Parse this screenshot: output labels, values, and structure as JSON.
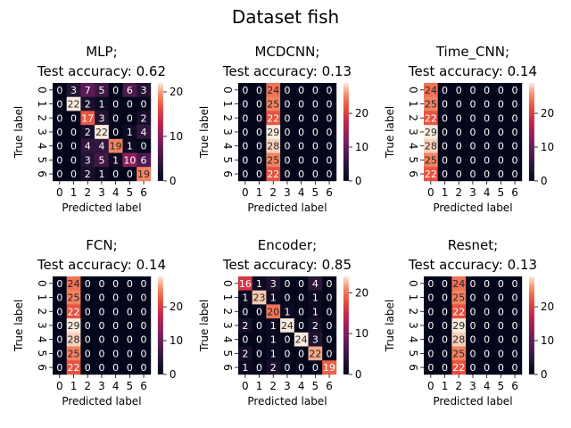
{
  "figure_title": "Dataset fish",
  "chart_data": [
    {
      "type": "heatmap",
      "title_line1": "MLP;",
      "title_line2": "Test accuracy: 0.62",
      "xlabel": "Predicted label",
      "ylabel": "True label",
      "x_ticks": [
        "0",
        "1",
        "2",
        "3",
        "4",
        "5",
        "6"
      ],
      "y_ticks": [
        "0",
        "1",
        "2",
        "3",
        "4",
        "5",
        "6"
      ],
      "vmax": 22,
      "colorbar_ticks": [
        0,
        10,
        20
      ],
      "matrix": [
        [
          0,
          3,
          7,
          5,
          0,
          6,
          3
        ],
        [
          0,
          22,
          2,
          1,
          0,
          0,
          0
        ],
        [
          0,
          0,
          17,
          3,
          0,
          0,
          2
        ],
        [
          0,
          0,
          2,
          22,
          0,
          1,
          4
        ],
        [
          0,
          0,
          4,
          4,
          19,
          1,
          0
        ],
        [
          0,
          0,
          3,
          5,
          1,
          10,
          6
        ],
        [
          0,
          0,
          2,
          1,
          0,
          0,
          19
        ]
      ]
    },
    {
      "type": "heatmap",
      "title_line1": "MCDCNN;",
      "title_line2": "Test accuracy: 0.13",
      "xlabel": "Predicted label",
      "ylabel": "True label",
      "x_ticks": [
        "0",
        "1",
        "2",
        "3",
        "4",
        "5",
        "6"
      ],
      "y_ticks": [
        "0",
        "1",
        "2",
        "3",
        "4",
        "5",
        "6"
      ],
      "vmax": 29,
      "colorbar_ticks": [
        0,
        10,
        20
      ],
      "matrix": [
        [
          0,
          0,
          24,
          0,
          0,
          0,
          0
        ],
        [
          0,
          0,
          25,
          0,
          0,
          0,
          0
        ],
        [
          0,
          0,
          22,
          0,
          0,
          0,
          0
        ],
        [
          0,
          0,
          29,
          0,
          0,
          0,
          0
        ],
        [
          0,
          0,
          28,
          0,
          0,
          0,
          0
        ],
        [
          0,
          0,
          25,
          0,
          0,
          0,
          0
        ],
        [
          0,
          0,
          22,
          0,
          0,
          0,
          0
        ]
      ]
    },
    {
      "type": "heatmap",
      "title_line1": "Time_CNN;",
      "title_line2": "Test accuracy: 0.14",
      "xlabel": "Predicted label",
      "ylabel": "True label",
      "x_ticks": [
        "0",
        "1",
        "2",
        "3",
        "4",
        "5",
        "6"
      ],
      "y_ticks": [
        "0",
        "1",
        "2",
        "3",
        "4",
        "5",
        "6"
      ],
      "vmax": 29,
      "colorbar_ticks": [
        0,
        10,
        20
      ],
      "matrix": [
        [
          24,
          0,
          0,
          0,
          0,
          0,
          0
        ],
        [
          25,
          0,
          0,
          0,
          0,
          0,
          0
        ],
        [
          22,
          0,
          0,
          0,
          0,
          0,
          0
        ],
        [
          29,
          0,
          0,
          0,
          0,
          0,
          0
        ],
        [
          28,
          0,
          0,
          0,
          0,
          0,
          0
        ],
        [
          25,
          0,
          0,
          0,
          0,
          0,
          0
        ],
        [
          22,
          0,
          0,
          0,
          0,
          0,
          0
        ]
      ]
    },
    {
      "type": "heatmap",
      "title_line1": "FCN;",
      "title_line2": "Test accuracy: 0.14",
      "xlabel": "Predicted label",
      "ylabel": "True label",
      "x_ticks": [
        "0",
        "1",
        "2",
        "3",
        "4",
        "5",
        "6"
      ],
      "y_ticks": [
        "0",
        "1",
        "2",
        "3",
        "4",
        "5",
        "6"
      ],
      "vmax": 29,
      "colorbar_ticks": [
        0,
        10,
        20
      ],
      "matrix": [
        [
          0,
          24,
          0,
          0,
          0,
          0,
          0
        ],
        [
          0,
          25,
          0,
          0,
          0,
          0,
          0
        ],
        [
          0,
          22,
          0,
          0,
          0,
          0,
          0
        ],
        [
          0,
          29,
          0,
          0,
          0,
          0,
          0
        ],
        [
          0,
          28,
          0,
          0,
          0,
          0,
          0
        ],
        [
          0,
          25,
          0,
          0,
          0,
          0,
          0
        ],
        [
          0,
          22,
          0,
          0,
          0,
          0,
          0
        ]
      ]
    },
    {
      "type": "heatmap",
      "title_line1": "Encoder;",
      "title_line2": "Test accuracy: 0.85",
      "xlabel": "Predicted label",
      "ylabel": "True label",
      "x_ticks": [
        "0",
        "1",
        "2",
        "3",
        "4",
        "5",
        "6"
      ],
      "y_ticks": [
        "0",
        "1",
        "2",
        "3",
        "4",
        "5",
        "6"
      ],
      "vmax": 24,
      "colorbar_ticks": [
        0,
        10,
        20
      ],
      "matrix": [
        [
          16,
          1,
          3,
          0,
          0,
          4,
          0
        ],
        [
          1,
          23,
          1,
          0,
          0,
          1,
          0
        ],
        [
          0,
          0,
          20,
          1,
          0,
          1,
          0
        ],
        [
          2,
          0,
          1,
          24,
          0,
          2,
          0
        ],
        [
          0,
          0,
          1,
          0,
          24,
          3,
          0
        ],
        [
          2,
          0,
          1,
          0,
          0,
          22,
          0
        ],
        [
          1,
          0,
          2,
          0,
          0,
          0,
          19
        ]
      ]
    },
    {
      "type": "heatmap",
      "title_line1": "Resnet;",
      "title_line2": "Test accuracy: 0.13",
      "xlabel": "Predicted label",
      "ylabel": "True label",
      "x_ticks": [
        "0",
        "1",
        "2",
        "3",
        "4",
        "5",
        "6"
      ],
      "y_ticks": [
        "0",
        "1",
        "2",
        "3",
        "4",
        "5",
        "6"
      ],
      "vmax": 29,
      "colorbar_ticks": [
        0,
        10,
        20
      ],
      "matrix": [
        [
          0,
          0,
          24,
          0,
          0,
          0,
          0
        ],
        [
          0,
          0,
          25,
          0,
          0,
          0,
          0
        ],
        [
          0,
          0,
          22,
          0,
          0,
          0,
          0
        ],
        [
          0,
          0,
          29,
          0,
          0,
          0,
          0
        ],
        [
          0,
          0,
          28,
          0,
          0,
          0,
          0
        ],
        [
          0,
          0,
          25,
          0,
          0,
          0,
          0
        ],
        [
          0,
          0,
          22,
          0,
          0,
          0,
          0
        ]
      ]
    }
  ]
}
